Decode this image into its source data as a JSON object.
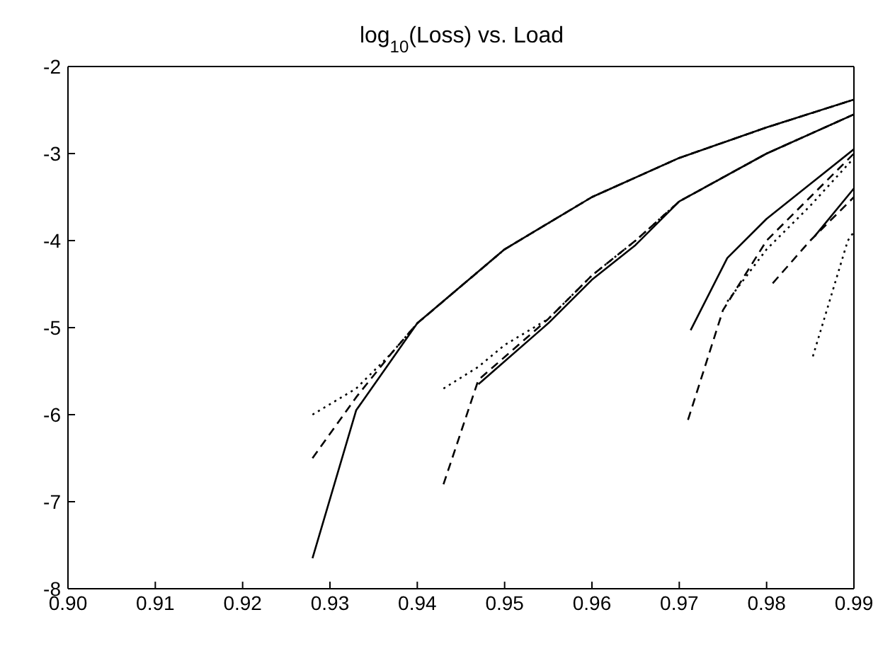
{
  "chart_data": {
    "type": "line",
    "title": "log$_{10}$(Loss) vs. Load",
    "xlim": [
      0.9,
      0.99
    ],
    "xticks": [
      {
        "value": 0.9,
        "label": "0.90"
      },
      0.91,
      0.92,
      0.93,
      0.94,
      0.95,
      0.96,
      0.97,
      0.98,
      0.99
    ],
    "ylim": [
      -8,
      -2
    ],
    "yticks": [
      -8,
      -7,
      -6,
      -5,
      -4,
      -3,
      -2
    ],
    "grid": false,
    "legend": false,
    "marker": "none",
    "series": [
      {
        "color": "#000000",
        "line_style": "solid",
        "x": [
          0.928,
          0.933,
          0.94,
          0.95,
          0.96,
          0.97,
          0.98,
          0.99
        ],
        "values": [
          -7.65,
          -5.95,
          -4.95,
          -4.1,
          -3.5,
          -3.05,
          -2.7,
          -2.38
        ]
      },
      {
        "color": "#000000",
        "line_style": "dashed",
        "x": [
          0.928,
          0.933,
          0.937,
          0.94,
          0.95,
          0.96,
          0.97,
          0.98,
          0.99
        ],
        "values": [
          -6.5,
          -5.8,
          -5.3,
          -4.95,
          -4.1,
          -3.5,
          -3.05,
          -2.7,
          -2.38
        ]
      },
      {
        "color": "#000000",
        "line_style": "dotted",
        "x": [
          0.928,
          0.933,
          0.937,
          0.94,
          0.95,
          0.96,
          0.97,
          0.98,
          0.99
        ],
        "values": [
          -6.0,
          -5.7,
          -5.3,
          -4.95,
          -4.1,
          -3.5,
          -3.05,
          -2.7,
          -2.38
        ]
      },
      {
        "color": "#000000",
        "line_style": "solid",
        "x": [
          0.947,
          0.955,
          0.96,
          0.965,
          0.97,
          0.98,
          0.99
        ],
        "values": [
          -5.65,
          -4.95,
          -4.45,
          -4.05,
          -3.55,
          -3.0,
          -2.55
        ]
      },
      {
        "color": "#000000",
        "line_style": "dashed",
        "x": [
          0.943,
          0.947,
          0.955,
          0.96,
          0.965,
          0.97,
          0.98,
          0.99
        ],
        "values": [
          -6.8,
          -5.6,
          -4.9,
          -4.4,
          -4.0,
          -3.55,
          -3.0,
          -2.55
        ]
      },
      {
        "color": "#000000",
        "line_style": "dotted",
        "x": [
          0.943,
          0.947,
          0.95,
          0.955,
          0.96,
          0.965,
          0.97,
          0.98,
          0.99
        ],
        "values": [
          -5.7,
          -5.45,
          -5.2,
          -4.9,
          -4.4,
          -4.0,
          -3.55,
          -3.0,
          -2.55
        ]
      },
      {
        "color": "#000000",
        "line_style": "solid",
        "x": [
          0.9713,
          0.9755,
          0.98,
          0.985,
          0.99
        ],
        "values": [
          -5.03,
          -4.2,
          -3.75,
          -3.35,
          -2.95
        ]
      },
      {
        "color": "#000000",
        "line_style": "dashed",
        "x": [
          0.971,
          0.975,
          0.98,
          0.985,
          0.99
        ],
        "values": [
          -6.06,
          -4.8,
          -4.0,
          -3.5,
          -3.0
        ]
      },
      {
        "color": "#000000",
        "line_style": "dotted",
        "x": [
          0.9755,
          0.98,
          0.985,
          0.99
        ],
        "values": [
          -4.7,
          -4.1,
          -3.6,
          -3.05
        ]
      },
      {
        "color": "#000000",
        "line_style": "solid",
        "x": [
          0.9855,
          0.99
        ],
        "values": [
          -3.95,
          -3.4
        ]
      },
      {
        "color": "#000000",
        "line_style": "dashed",
        "x": [
          0.9807,
          0.985,
          0.99
        ],
        "values": [
          -4.49,
          -4.0,
          -3.5
        ]
      },
      {
        "color": "#000000",
        "line_style": "dotted",
        "x": [
          0.9853,
          0.9893,
          0.99
        ],
        "values": [
          -5.33,
          -4.0,
          -3.9
        ]
      }
    ]
  }
}
